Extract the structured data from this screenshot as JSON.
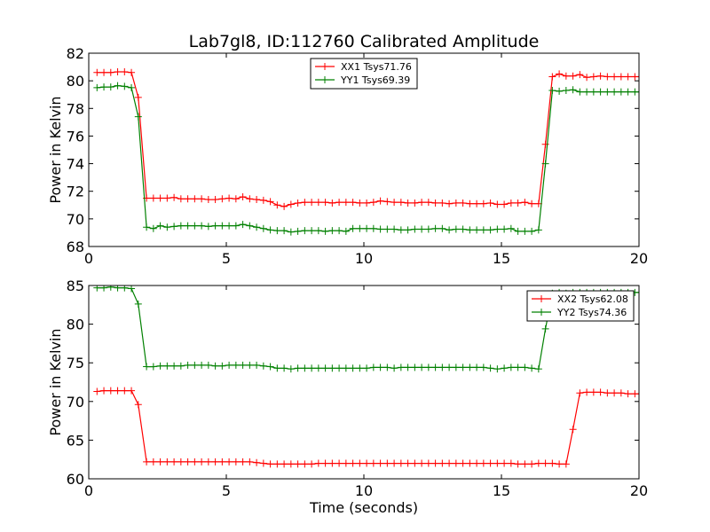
{
  "figure_title": "Lab7gl8, ID:112760 Calibrated Amplitude",
  "colors": {
    "red": "#ff0000",
    "green": "#008000",
    "axes": "#000000",
    "background": "#ffffff"
  },
  "chart_data": [
    {
      "type": "line",
      "title": "Lab7gl8, ID:112760 Calibrated Amplitude",
      "xlabel": "",
      "ylabel": "Power in Kelvin",
      "xlim": [
        0,
        20
      ],
      "ylim": [
        68,
        82
      ],
      "xticks": [
        0,
        5,
        10,
        15,
        20
      ],
      "yticks": [
        68,
        70,
        72,
        74,
        76,
        78,
        80,
        82
      ],
      "grid": false,
      "legend_position": "top-center",
      "marker": "+",
      "x": [
        0.3,
        0.55,
        0.8,
        1.05,
        1.3,
        1.55,
        1.8,
        2.1,
        2.35,
        2.6,
        2.85,
        3.1,
        3.35,
        3.6,
        3.85,
        4.1,
        4.35,
        4.6,
        4.85,
        5.1,
        5.35,
        5.6,
        5.85,
        6.1,
        6.35,
        6.6,
        6.85,
        7.1,
        7.35,
        7.6,
        7.85,
        8.1,
        8.35,
        8.6,
        8.85,
        9.1,
        9.35,
        9.6,
        9.85,
        10.1,
        10.35,
        10.6,
        10.85,
        11.1,
        11.35,
        11.6,
        11.85,
        12.1,
        12.35,
        12.6,
        12.85,
        13.1,
        13.35,
        13.6,
        13.85,
        14.1,
        14.35,
        14.6,
        14.85,
        15.1,
        15.35,
        15.6,
        15.85,
        16.1,
        16.35,
        16.6,
        16.85,
        17.1,
        17.35,
        17.6,
        17.85,
        18.1,
        18.35,
        18.6,
        18.85,
        19.1,
        19.35,
        19.6,
        19.85,
        20.0
      ],
      "series": [
        {
          "name": "XX1 Tsys71.76",
          "color": "#ff0000",
          "values": [
            80.6,
            80.6,
            80.6,
            80.65,
            80.65,
            80.6,
            78.8,
            71.5,
            71.5,
            71.5,
            71.5,
            71.55,
            71.45,
            71.45,
            71.45,
            71.45,
            71.4,
            71.4,
            71.45,
            71.5,
            71.45,
            71.6,
            71.45,
            71.4,
            71.35,
            71.25,
            71.0,
            70.9,
            71.05,
            71.15,
            71.2,
            71.2,
            71.2,
            71.2,
            71.15,
            71.2,
            71.2,
            71.2,
            71.15,
            71.15,
            71.2,
            71.3,
            71.25,
            71.2,
            71.2,
            71.15,
            71.15,
            71.2,
            71.2,
            71.15,
            71.15,
            71.1,
            71.15,
            71.15,
            71.1,
            71.1,
            71.1,
            71.15,
            71.05,
            71.05,
            71.15,
            71.15,
            71.2,
            71.1,
            71.1,
            75.4,
            80.3,
            80.5,
            80.35,
            80.35,
            80.45,
            80.25,
            80.3,
            80.35,
            80.3,
            80.3,
            80.3,
            80.3,
            80.3,
            80.3
          ],
          "x_override": [
            0.3,
            0.55,
            0.8,
            1.05,
            1.3,
            1.6,
            1.9,
            2.2,
            2.45,
            2.7,
            2.95,
            3.25,
            3.5,
            3.75,
            4.0,
            4.25,
            4.5,
            4.75,
            5.0,
            5.25,
            5.5,
            5.75,
            5.95,
            6.2,
            6.45,
            6.7,
            7.0,
            7.25,
            7.5,
            7.75,
            8.0,
            8.25,
            8.55,
            8.8,
            9.05,
            9.3,
            9.55,
            9.8,
            10.05,
            10.3,
            10.55,
            10.8,
            11.05,
            11.3,
            11.55,
            11.8,
            12.05,
            12.3,
            12.55,
            12.8,
            13.05,
            13.3,
            13.55,
            13.8,
            14.05,
            14.3,
            14.55,
            14.8,
            15.05,
            15.3,
            15.55,
            15.8,
            16.05,
            16.3,
            16.55,
            16.8,
            17.05,
            17.3,
            17.55,
            17.8,
            18.05,
            18.3,
            18.55,
            18.8,
            19.05,
            19.3,
            19.55,
            19.8,
            20.0,
            20.0
          ]
        },
        {
          "name": "YY1 Tsys69.39",
          "color": "#008000",
          "values": [
            79.5,
            79.55,
            79.55,
            79.65,
            79.6,
            79.5,
            77.4,
            69.4,
            69.3,
            69.5,
            69.4,
            69.45,
            69.5,
            69.5,
            69.5,
            69.5,
            69.45,
            69.5,
            69.5,
            69.5,
            69.5,
            69.6,
            69.5,
            69.4,
            69.3,
            69.2,
            69.15,
            69.15,
            69.05,
            69.1,
            69.15,
            69.15,
            69.15,
            69.1,
            69.15,
            69.15,
            69.1,
            69.3,
            69.3,
            69.3,
            69.3,
            69.25,
            69.25,
            69.25,
            69.2,
            69.2,
            69.25,
            69.25,
            69.25,
            69.3,
            69.3,
            69.2,
            69.25,
            69.25,
            69.2,
            69.2,
            69.2,
            69.2,
            69.25,
            69.25,
            69.3,
            69.1,
            69.1,
            69.1,
            69.2,
            74.0,
            79.3,
            79.25,
            79.3,
            79.35,
            79.2,
            79.2,
            79.2,
            79.2,
            79.2,
            79.2,
            79.2,
            79.2,
            79.2,
            79.2
          ]
        }
      ]
    },
    {
      "type": "line",
      "title": "",
      "xlabel": "Time (seconds)",
      "ylabel": "Power in Kelvin",
      "xlim": [
        0,
        20
      ],
      "ylim": [
        60,
        85
      ],
      "xticks": [
        0,
        5,
        10,
        15,
        20
      ],
      "yticks": [
        60,
        65,
        70,
        75,
        80,
        85
      ],
      "grid": false,
      "legend_position": "top-right",
      "marker": "+",
      "series": [
        {
          "name": "XX2 Tsys62.08",
          "color": "#ff0000",
          "values": [
            71.3,
            71.4,
            71.4,
            71.4,
            71.4,
            71.4,
            69.6,
            62.2,
            62.2,
            62.2,
            62.2,
            62.2,
            62.2,
            62.2,
            62.2,
            62.2,
            62.2,
            62.2,
            62.2,
            62.2,
            62.2,
            62.2,
            62.2,
            62.1,
            62.0,
            61.9,
            61.9,
            61.9,
            61.9,
            61.9,
            61.9,
            61.9,
            62.0,
            62.0,
            62.0,
            62.0,
            62.0,
            62.0,
            62.0,
            62.0,
            62.0,
            62.0,
            62.0,
            62.0,
            62.0,
            62.0,
            62.0,
            62.0,
            62.0,
            62.0,
            62.0,
            62.0,
            62.0,
            62.0,
            62.0,
            62.0,
            62.0,
            62.0,
            62.0,
            62.0,
            62.0,
            61.9,
            61.9,
            61.9,
            62.0,
            62.0,
            62.0,
            61.9,
            61.9,
            66.4,
            71.1,
            71.2,
            71.2,
            71.2,
            71.1,
            71.1,
            71.1,
            71.0,
            71.0,
            71.0
          ]
        },
        {
          "name": "YY2 Tsys74.36",
          "color": "#008000",
          "values": [
            84.7,
            84.7,
            84.8,
            84.7,
            84.7,
            84.6,
            82.6,
            74.5,
            74.5,
            74.6,
            74.6,
            74.6,
            74.6,
            74.7,
            74.7,
            74.7,
            74.7,
            74.6,
            74.6,
            74.7,
            74.7,
            74.7,
            74.7,
            74.7,
            74.6,
            74.5,
            74.3,
            74.3,
            74.2,
            74.3,
            74.3,
            74.3,
            74.3,
            74.3,
            74.3,
            74.3,
            74.3,
            74.3,
            74.3,
            74.3,
            74.4,
            74.4,
            74.4,
            74.3,
            74.4,
            74.4,
            74.4,
            74.4,
            74.4,
            74.4,
            74.4,
            74.4,
            74.4,
            74.4,
            74.4,
            74.4,
            74.4,
            74.3,
            74.2,
            74.3,
            74.4,
            74.4,
            74.4,
            74.3,
            74.2,
            79.4,
            84.0,
            84.1,
            84.0,
            84.1,
            84.1,
            84.1,
            84.1,
            84.1,
            84.1,
            84.1,
            84.1,
            84.1,
            84.1,
            84.1
          ]
        }
      ]
    }
  ]
}
